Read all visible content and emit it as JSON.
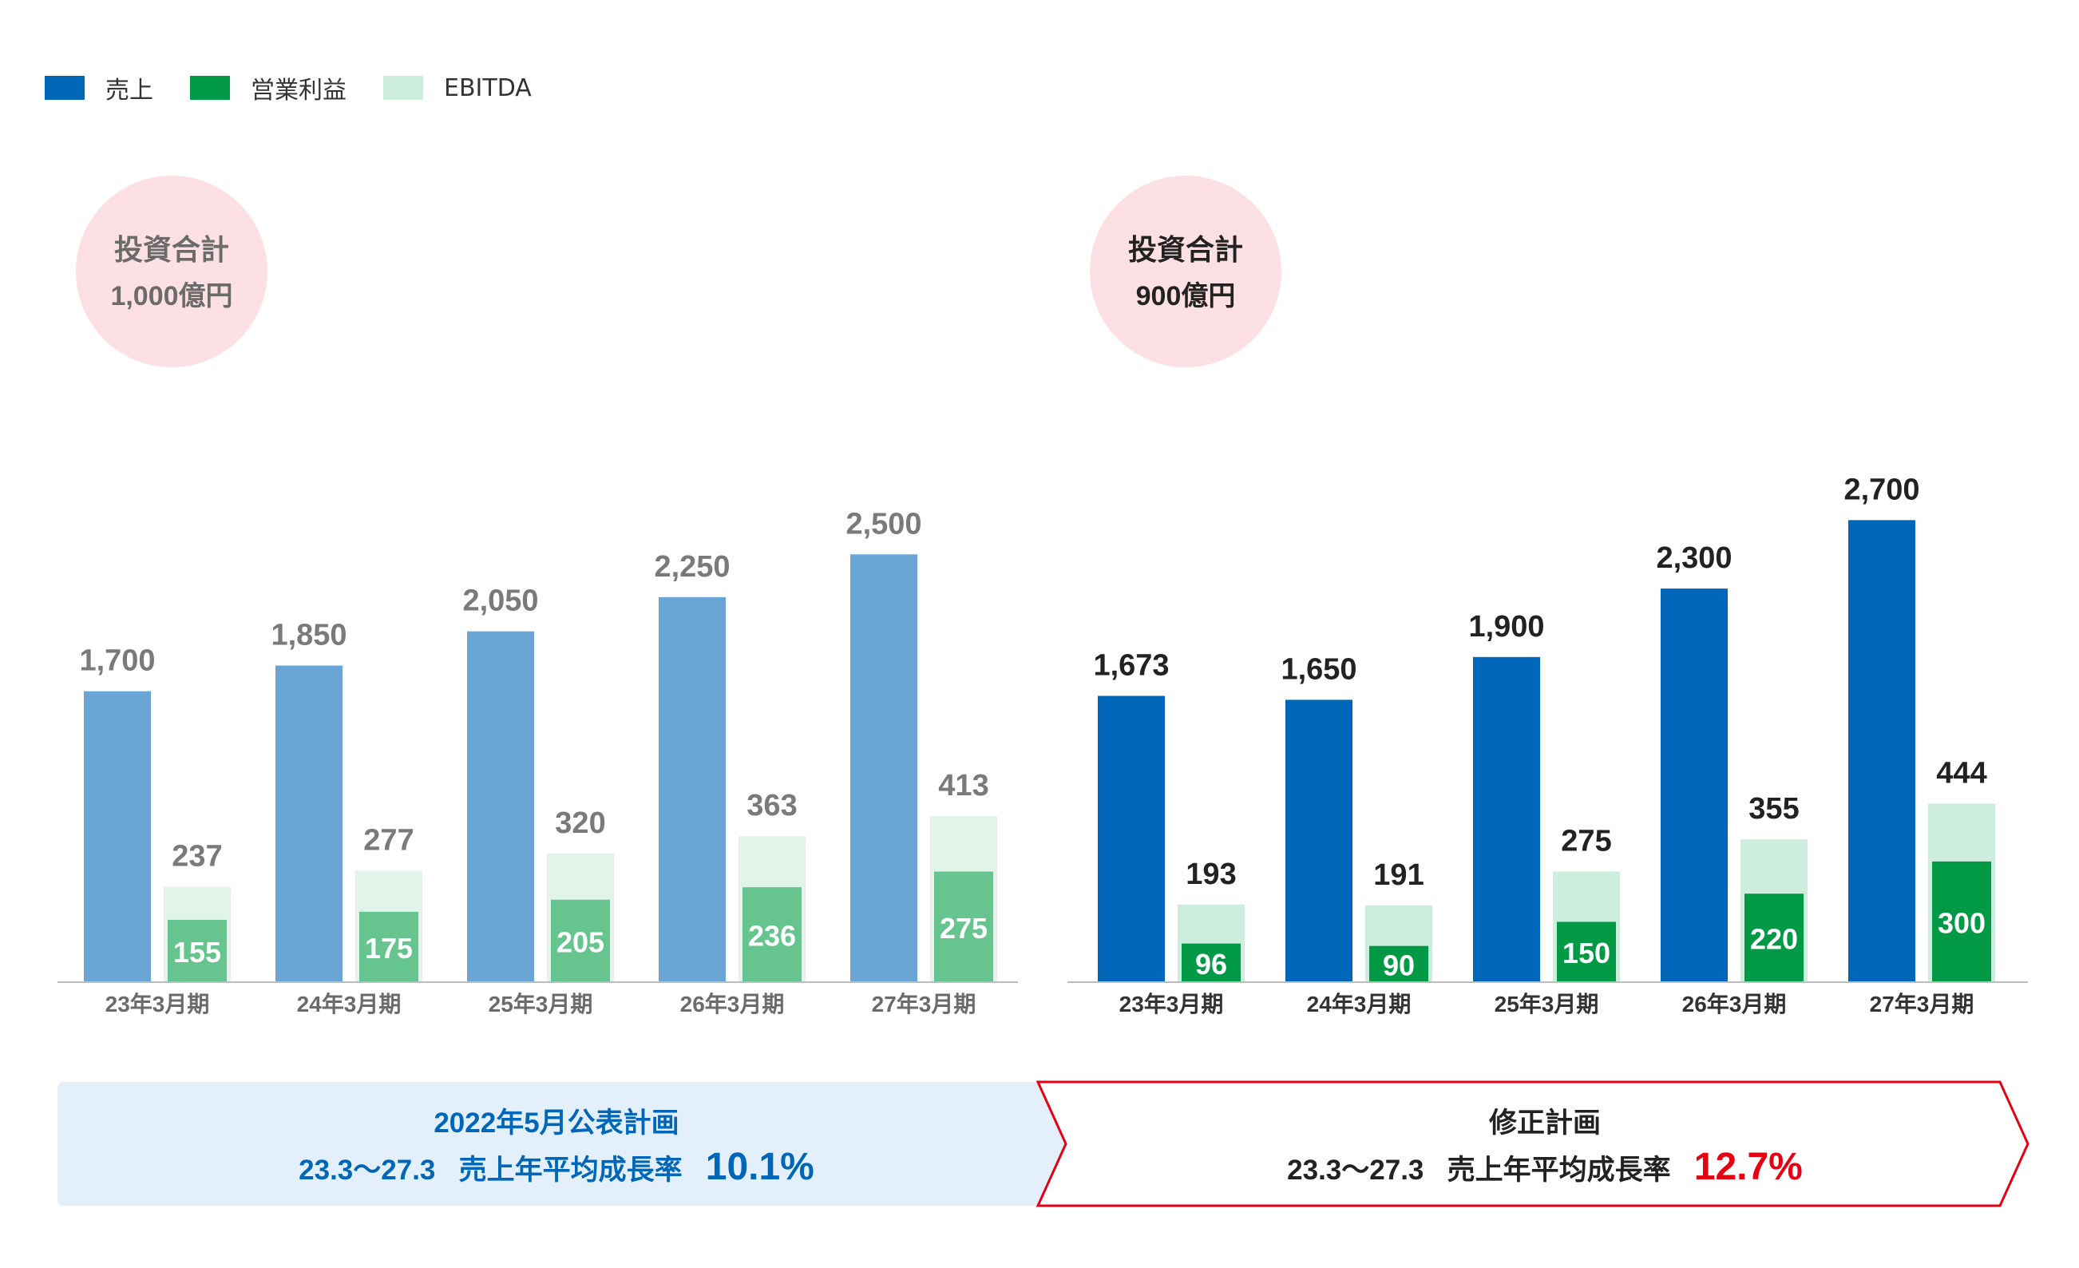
{
  "legend": [
    {
      "label": "売上",
      "color": "#0066b8"
    },
    {
      "label": "営業利益",
      "color": "#009a46"
    },
    {
      "label": "EBITDA",
      "color": "#cdeedd"
    }
  ],
  "chart_data": [
    {
      "type": "bar",
      "stacked_overlay": true,
      "categories": [
        "23年3月期",
        "24年3月期",
        "25年3月期",
        "26年3月期",
        "27年3月期"
      ],
      "series": [
        {
          "name": "売上",
          "values": [
            1700,
            1850,
            2050,
            2250,
            2500
          ],
          "color": "#69a6d6"
        },
        {
          "name": "EBITDA",
          "values": [
            237,
            277,
            320,
            363,
            413
          ],
          "color": "#e1f4ea"
        },
        {
          "name": "営業利益",
          "values": [
            155,
            175,
            205,
            236,
            275
          ],
          "color": "#66c48e"
        }
      ],
      "label_color": "#7a7a7a",
      "badge": {
        "line1": "投資合計",
        "line2": "1,000億円"
      },
      "caption": {
        "title": "2022年5月公表計画",
        "period": "23.3〜27.3",
        "label": "売上年平均成長率",
        "rate": "10.1%",
        "rate_color": "#0066b8",
        "text_color": "#0066b8"
      }
    },
    {
      "type": "bar",
      "stacked_overlay": true,
      "categories": [
        "23年3月期",
        "24年3月期",
        "25年3月期",
        "26年3月期",
        "27年3月期"
      ],
      "series": [
        {
          "name": "売上",
          "values": [
            1673,
            1650,
            1900,
            2300,
            2700
          ],
          "color": "#0066b8"
        },
        {
          "name": "EBITDA",
          "values": [
            193,
            191,
            275,
            355,
            444
          ],
          "color": "#cdeedd"
        },
        {
          "name": "営業利益",
          "values": [
            96,
            90,
            150,
            220,
            300
          ],
          "color": "#009a46"
        }
      ],
      "label_color": "#222222",
      "badge": {
        "line1": "投資合計",
        "line2": "900億円"
      },
      "caption": {
        "title": "修正計画",
        "period": "23.3〜27.3",
        "label": "売上年平均成長率",
        "rate": "12.7%",
        "rate_color": "#e60012",
        "text_color": "#222222"
      }
    }
  ]
}
